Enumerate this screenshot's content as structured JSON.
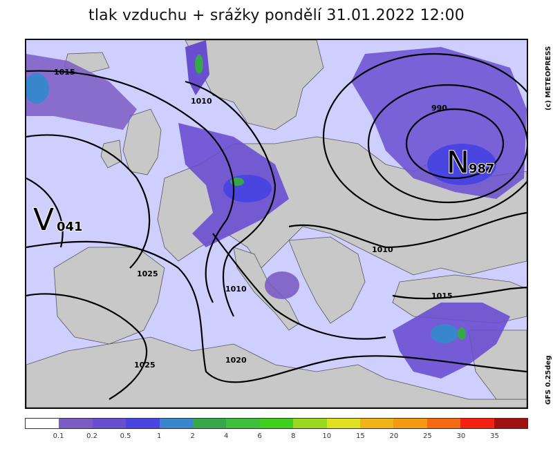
{
  "title": "tlak vzduchu + srážky pondělí 31.01.2022 12:00",
  "copyright": "(c) METEOPRESS",
  "model": "GFS 0.25deg",
  "pressure_centers": [
    {
      "letter": "V",
      "value": "041",
      "meaning": "high"
    },
    {
      "letter": "N",
      "value": "987",
      "meaning": "low"
    }
  ],
  "isobar_labels": [
    "1015",
    "1010",
    "1025",
    "1010",
    "1025",
    "1020",
    "990",
    "1010",
    "1015"
  ],
  "colors": {
    "land": "#c8c8c8",
    "sea_and_light_precip": "#cfcfff",
    "precip_0_1": "#7b5cc4",
    "precip_0_2": "#6a4ed0",
    "precip_0_5": "#4a45e0",
    "precip_1": "#3a86cc",
    "precip_2": "#35a84a",
    "isobar": "#000000"
  },
  "legend": {
    "colors": [
      "#ffffff",
      "#7b5cc4",
      "#6a4ed0",
      "#4a45e0",
      "#3a86cc",
      "#35a84a",
      "#3ec03e",
      "#40d020",
      "#9ad81e",
      "#e0e020",
      "#f0b418",
      "#f59a10",
      "#f46a10",
      "#f42010",
      "#a01010"
    ],
    "labels": [
      "0.1",
      "0.2",
      "0.5",
      "1",
      "2",
      "4",
      "6",
      "8",
      "10",
      "15",
      "20",
      "25",
      "30",
      "35"
    ]
  }
}
